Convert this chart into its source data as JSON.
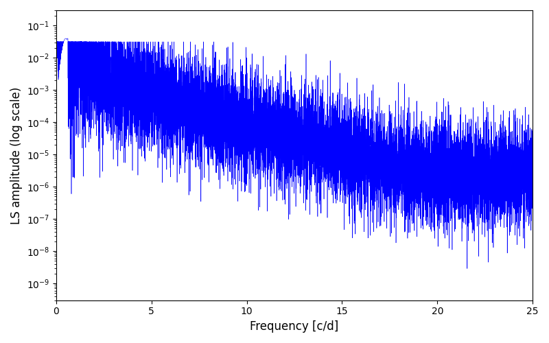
{
  "xlabel": "Frequency [c/d]",
  "ylabel": "LS amplitude (log scale)",
  "line_color": "#0000ff",
  "xlim": [
    0,
    25
  ],
  "ylim": [
    3e-10,
    0.3
  ],
  "figsize": [
    8.0,
    5.0
  ],
  "dpi": 100,
  "seed": 7,
  "n_points": 12000,
  "background_color": "#ffffff"
}
